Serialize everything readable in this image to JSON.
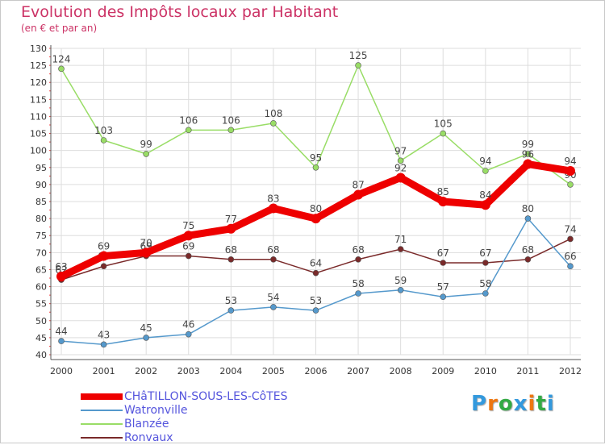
{
  "chart_data": {
    "type": "line",
    "title": "Evolution des Impôts locaux par Habitant",
    "subtitle": "(en € et par an)",
    "xlabel": "",
    "ylabel": "",
    "ylim": [
      40,
      130
    ],
    "yticks": [
      40,
      45,
      50,
      55,
      60,
      65,
      70,
      75,
      80,
      85,
      90,
      95,
      100,
      105,
      110,
      115,
      120,
      125,
      130
    ],
    "x": [
      "2000",
      "2001",
      "2002",
      "2003",
      "2004",
      "2005",
      "2006",
      "2007",
      "2008",
      "2009",
      "2010",
      "2011",
      "2012"
    ],
    "grid": true,
    "series": [
      {
        "name": "Ronvaux",
        "color": "#7a2a2a",
        "values": [
          62,
          66,
          69,
          69,
          68,
          68,
          64,
          68,
          71,
          67,
          67,
          68,
          74
        ],
        "labels": [
          "62",
          "66",
          "69",
          "69",
          "68",
          "68",
          "64",
          "68",
          "71",
          "67",
          "67",
          "68",
          "74"
        ]
      },
      {
        "name": "Blanzée",
        "color": "#99dd66",
        "values": [
          124,
          103,
          99,
          106,
          106,
          108,
          95,
          125,
          97,
          105,
          94,
          99,
          90
        ],
        "labels": [
          "124",
          "103",
          "99",
          "106",
          "106",
          "108",
          "95",
          "125",
          "97",
          "105",
          "94",
          "99",
          "90"
        ]
      },
      {
        "name": "Watronville",
        "color": "#5599cc",
        "values": [
          44,
          43,
          45,
          46,
          53,
          54,
          53,
          58,
          59,
          57,
          58,
          80,
          66
        ],
        "labels": [
          "44",
          "43",
          "45",
          "46",
          "53",
          "54",
          "53",
          "58",
          "59",
          "57",
          "58",
          "80",
          "66"
        ]
      },
      {
        "name": "CHâTILLON-SOUS-LES-CôTES",
        "color": "#ee0000",
        "values": [
          63,
          69,
          70,
          75,
          77,
          83,
          80,
          87,
          92,
          85,
          84,
          96,
          94
        ],
        "labels": [
          "63",
          "69",
          "70",
          "75",
          "77",
          "83",
          "80",
          "87",
          "92",
          "85",
          "84",
          "96",
          "94"
        ]
      }
    ]
  },
  "legend": [
    {
      "label": "CHâTILLON-SOUS-LES-CôTES",
      "color": "#ee0000",
      "thickness": "thick"
    },
    {
      "label": "Watronville",
      "color": "#5599cc",
      "thickness": "thin"
    },
    {
      "label": "Blanzée",
      "color": "#99dd66",
      "thickness": "thin"
    },
    {
      "label": "Ronvaux",
      "color": "#7a2a2a",
      "thickness": "thin"
    }
  ],
  "logo": {
    "letters": [
      "P",
      "r",
      "o",
      "x",
      "i",
      "t",
      "i"
    ],
    "colors": [
      "#3399dd",
      "#ee7711",
      "#33aa44",
      "#3399dd",
      "#ee7711",
      "#33aa44",
      "#3399dd"
    ],
    "text": "Proxiti"
  }
}
